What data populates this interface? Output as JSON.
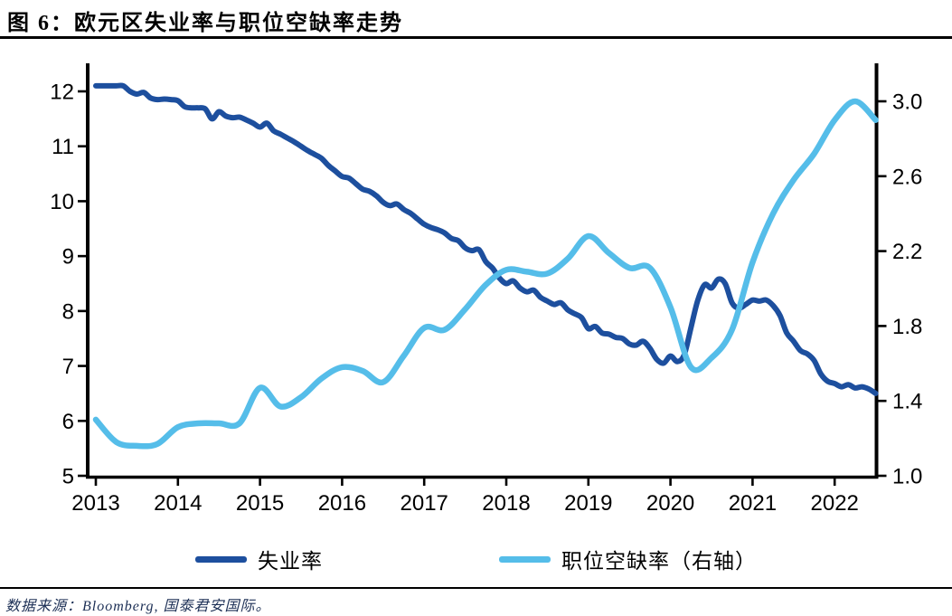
{
  "page": {
    "title": "图 6：欧元区失业率与职位空缺率走势",
    "source_note": "数据来源：Bloomberg, 国泰君安国际。"
  },
  "legend": {
    "items": [
      {
        "label": "失业率",
        "color": "#1d4f9e"
      },
      {
        "label": "职位空缺率（右轴）",
        "color": "#55bde9"
      }
    ]
  },
  "colors": {
    "unemployment_line": "#1d4f9e",
    "vacancy_line": "#55bde9",
    "axis": "#000000",
    "tick_text": "#000000",
    "footer_text": "#1c2f55"
  },
  "chart_data": {
    "type": "line",
    "title": "欧元区失业率与职位空缺率走势",
    "grid": false,
    "legend_position": "bottom",
    "x_tick_labels": [
      "2013",
      "2014",
      "2015",
      "2016",
      "2017",
      "2018",
      "2019",
      "2020",
      "2021",
      "2022"
    ],
    "x_range": [
      2013.0,
      2022.55
    ],
    "left_axis": {
      "range": [
        5,
        12
      ],
      "tick_labels": [
        "12",
        "11",
        "10",
        "9",
        "8",
        "7",
        "6",
        "5"
      ],
      "ticks": [
        12,
        11,
        10,
        9,
        8,
        7,
        6,
        5
      ]
    },
    "right_axis": {
      "range": [
        1.0,
        3.0
      ],
      "tick_labels": [
        "3.0",
        "2.6",
        "2.2",
        "1.8",
        "1.4",
        "1.0"
      ],
      "ticks": [
        3.0,
        2.6,
        2.2,
        1.8,
        1.4,
        1.0
      ]
    },
    "series": [
      {
        "name": "失业率",
        "axis": "left",
        "color": "#1d4f9e",
        "stroke_width": 6,
        "x_start": 2013.0,
        "x_step": 0.0833333,
        "values": [
          12.1,
          12.1,
          12.1,
          12.1,
          12.1,
          12.0,
          11.95,
          11.98,
          11.88,
          11.85,
          11.86,
          11.85,
          11.83,
          11.72,
          11.7,
          11.7,
          11.68,
          11.5,
          11.63,
          11.55,
          11.52,
          11.53,
          11.48,
          11.42,
          11.35,
          11.42,
          11.28,
          11.22,
          11.15,
          11.08,
          11.0,
          10.92,
          10.85,
          10.78,
          10.65,
          10.55,
          10.45,
          10.42,
          10.32,
          10.22,
          10.18,
          10.1,
          9.98,
          9.92,
          9.95,
          9.85,
          9.78,
          9.68,
          9.58,
          9.52,
          9.48,
          9.42,
          9.32,
          9.28,
          9.15,
          9.1,
          9.12,
          8.9,
          8.78,
          8.6,
          8.5,
          8.55,
          8.42,
          8.35,
          8.38,
          8.25,
          8.18,
          8.12,
          8.15,
          8.02,
          7.95,
          7.88,
          7.68,
          7.72,
          7.6,
          7.58,
          7.52,
          7.5,
          7.4,
          7.38,
          7.45,
          7.32,
          7.12,
          7.05,
          7.18,
          7.08,
          7.2,
          7.7,
          8.2,
          8.48,
          8.42,
          8.58,
          8.5,
          8.15,
          8.05,
          8.12,
          8.2,
          8.18,
          8.2,
          8.1,
          7.92,
          7.6,
          7.45,
          7.28,
          7.22,
          7.1,
          6.85,
          6.72,
          6.68,
          6.62,
          6.66,
          6.6,
          6.62,
          6.58,
          6.5
        ]
      },
      {
        "name": "职位空缺率（右轴）",
        "axis": "right",
        "color": "#55bde9",
        "stroke_width": 6.5,
        "x_start": 2013.0,
        "x_step": 0.25,
        "values": [
          1.3,
          1.18,
          1.16,
          1.17,
          1.26,
          1.28,
          1.28,
          1.28,
          1.47,
          1.37,
          1.42,
          1.52,
          1.58,
          1.56,
          1.5,
          1.64,
          1.79,
          1.78,
          1.89,
          2.02,
          2.1,
          2.09,
          2.08,
          2.16,
          2.28,
          2.19,
          2.11,
          2.11,
          1.9,
          1.58,
          1.63,
          1.78,
          2.14,
          2.4,
          2.58,
          2.72,
          2.9,
          3.0,
          2.9
        ]
      }
    ]
  }
}
